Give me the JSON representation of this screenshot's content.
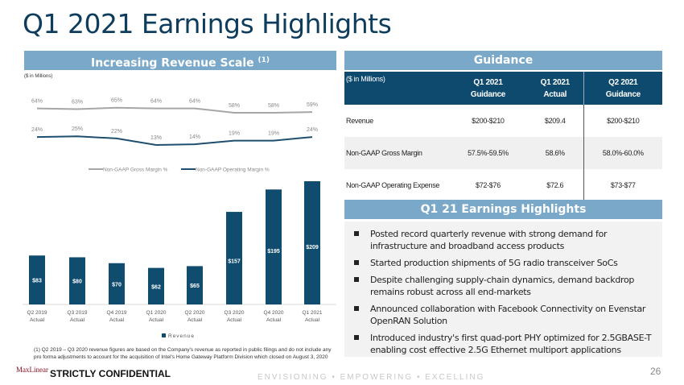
{
  "title": "Q1 2021 Earnings Highlights",
  "left_panel": {
    "header": "Increasing Revenue Scale",
    "header_sup": "(1)",
    "units": "($ in Millions)"
  },
  "chart_data": [
    {
      "type": "line",
      "categories": [
        "Q2 2019",
        "Q3 2019",
        "Q4 2019",
        "Q1 2020",
        "Q2 2020",
        "Q3 2020",
        "Q4 2020",
        "Q1 2021"
      ],
      "series": [
        {
          "name": "Non-GAAP Gross Margin %",
          "values": [
            64,
            63,
            65,
            64,
            64,
            58,
            58,
            59
          ],
          "labels": [
            "64%",
            "63%",
            "65%",
            "64%",
            "64%",
            "58%",
            "58%",
            "59%"
          ],
          "color": "#a6a6a6"
        },
        {
          "name": "Non-GAAP Operating Margin %",
          "values": [
            24,
            25,
            22,
            13,
            14,
            19,
            19,
            24
          ],
          "labels": [
            "24%",
            "25%",
            "22%",
            "13%",
            "14%",
            "19%",
            "19%",
            "24%"
          ],
          "color": "#1f4e6e"
        }
      ],
      "legend": "bottom",
      "grid": false
    },
    {
      "type": "bar",
      "categories": [
        "Q2 2019",
        "Q3 2019",
        "Q4 2019",
        "Q1 2020",
        "Q2 2020",
        "Q3 2020",
        "Q4 2020",
        "Q1 2021"
      ],
      "sub": "Actual",
      "values": [
        83,
        80,
        70,
        62,
        65,
        157,
        195,
        209
      ],
      "labels": [
        "$83",
        "$80",
        "$70",
        "$62",
        "$65",
        "$157",
        "$195",
        "$209"
      ],
      "series_name": "Revenue",
      "color": "#0f4c6e",
      "legend": "bottom",
      "ylim": [
        0,
        209
      ]
    }
  ],
  "guidance": {
    "header": "Guidance",
    "units": "($ in Millions)",
    "columns": [
      [
        "Q1 2021",
        "Guidance"
      ],
      [
        "Q1 2021",
        "Actual"
      ],
      [
        "Q2 2021",
        "Guidance"
      ]
    ],
    "rows": [
      [
        "Revenue",
        "$200-$210",
        "$209.4",
        "$200-$210"
      ],
      [
        "Non-GAAP Gross Margin",
        "57.5%-59.5%",
        "58.6%",
        "58.0%-60.0%"
      ],
      [
        "Non-GAAP Operating Expense",
        "$72-$76",
        "$72.6",
        "$73-$77"
      ]
    ]
  },
  "highlights": {
    "header": "Q1 21 Earnings Highlights",
    "items": [
      "Posted record quarterly revenue with strong demand for infrastructure and broadband access products",
      "Started production shipments of 5G radio transceiver SoCs",
      "Despite challenging supply-chain dynamics, demand backdrop remains robust across all end-markets",
      "Announced collaboration with Facebook Connectivity on Evenstar OpenRAN Solution",
      "Introduced industry's first quad-port PHY optimized for 2.5GBASE-T enabling cost effective 2.5G Ethernet multiport applications"
    ]
  },
  "footnote": "(1) Q2 2019 – Q3 2020 revenue figures are based on the Company's revenue as reported in public filings and do not include any pro forma adjustments to account for the acquisition of Intel's Home Gateway Platform Division which closed on August 3, 2020",
  "footer": {
    "logo": "MaxLinear",
    "confidential": "STRICTLY CONFIDENTIAL",
    "tagline": "ENVISIONING • EMPOWERING • EXCELLING",
    "page": "26"
  }
}
